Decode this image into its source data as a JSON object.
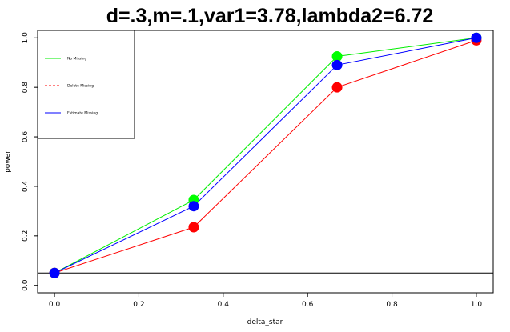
{
  "chart_data": {
    "type": "line",
    "title": "d=.3,m=.1,var1=3.78,lambda2=6.72",
    "xlabel": "delta_star",
    "ylabel": "power",
    "xlim": [
      -0.04,
      1.04
    ],
    "ylim": [
      -0.03,
      1.03
    ],
    "x_ticks": [
      "0.0",
      "0.2",
      "0.4",
      "0.6",
      "0.8",
      "1.0"
    ],
    "y_ticks": [
      "0.0",
      "0.2",
      "0.4",
      "0.6",
      "0.8",
      "1.0"
    ],
    "x": [
      0,
      0.33,
      0.67,
      1.0
    ],
    "reference_line_y": 0.05,
    "grid": false,
    "legend_position": "top-left",
    "series": [
      {
        "name": "No Missing",
        "values": [
          0.05,
          0.345,
          0.925,
          1.0
        ],
        "color": "#00ee00",
        "marker_color": "#00ff00",
        "dash": ""
      },
      {
        "name": "Delete Missing",
        "values": [
          0.05,
          0.235,
          0.8,
          0.99
        ],
        "color": "#ff0000",
        "marker_color": "#ff0000",
        "dash": "3,2"
      },
      {
        "name": "Estimate Missing",
        "values": [
          0.05,
          0.32,
          0.89,
          1.0
        ],
        "color": "#0000ff",
        "marker_color": "#0000ff",
        "dash": ""
      }
    ],
    "draw_order": [
      0,
      1,
      2
    ],
    "line_colors": [
      "#00ee00",
      "#ff0000",
      "#0000ff"
    ]
  }
}
